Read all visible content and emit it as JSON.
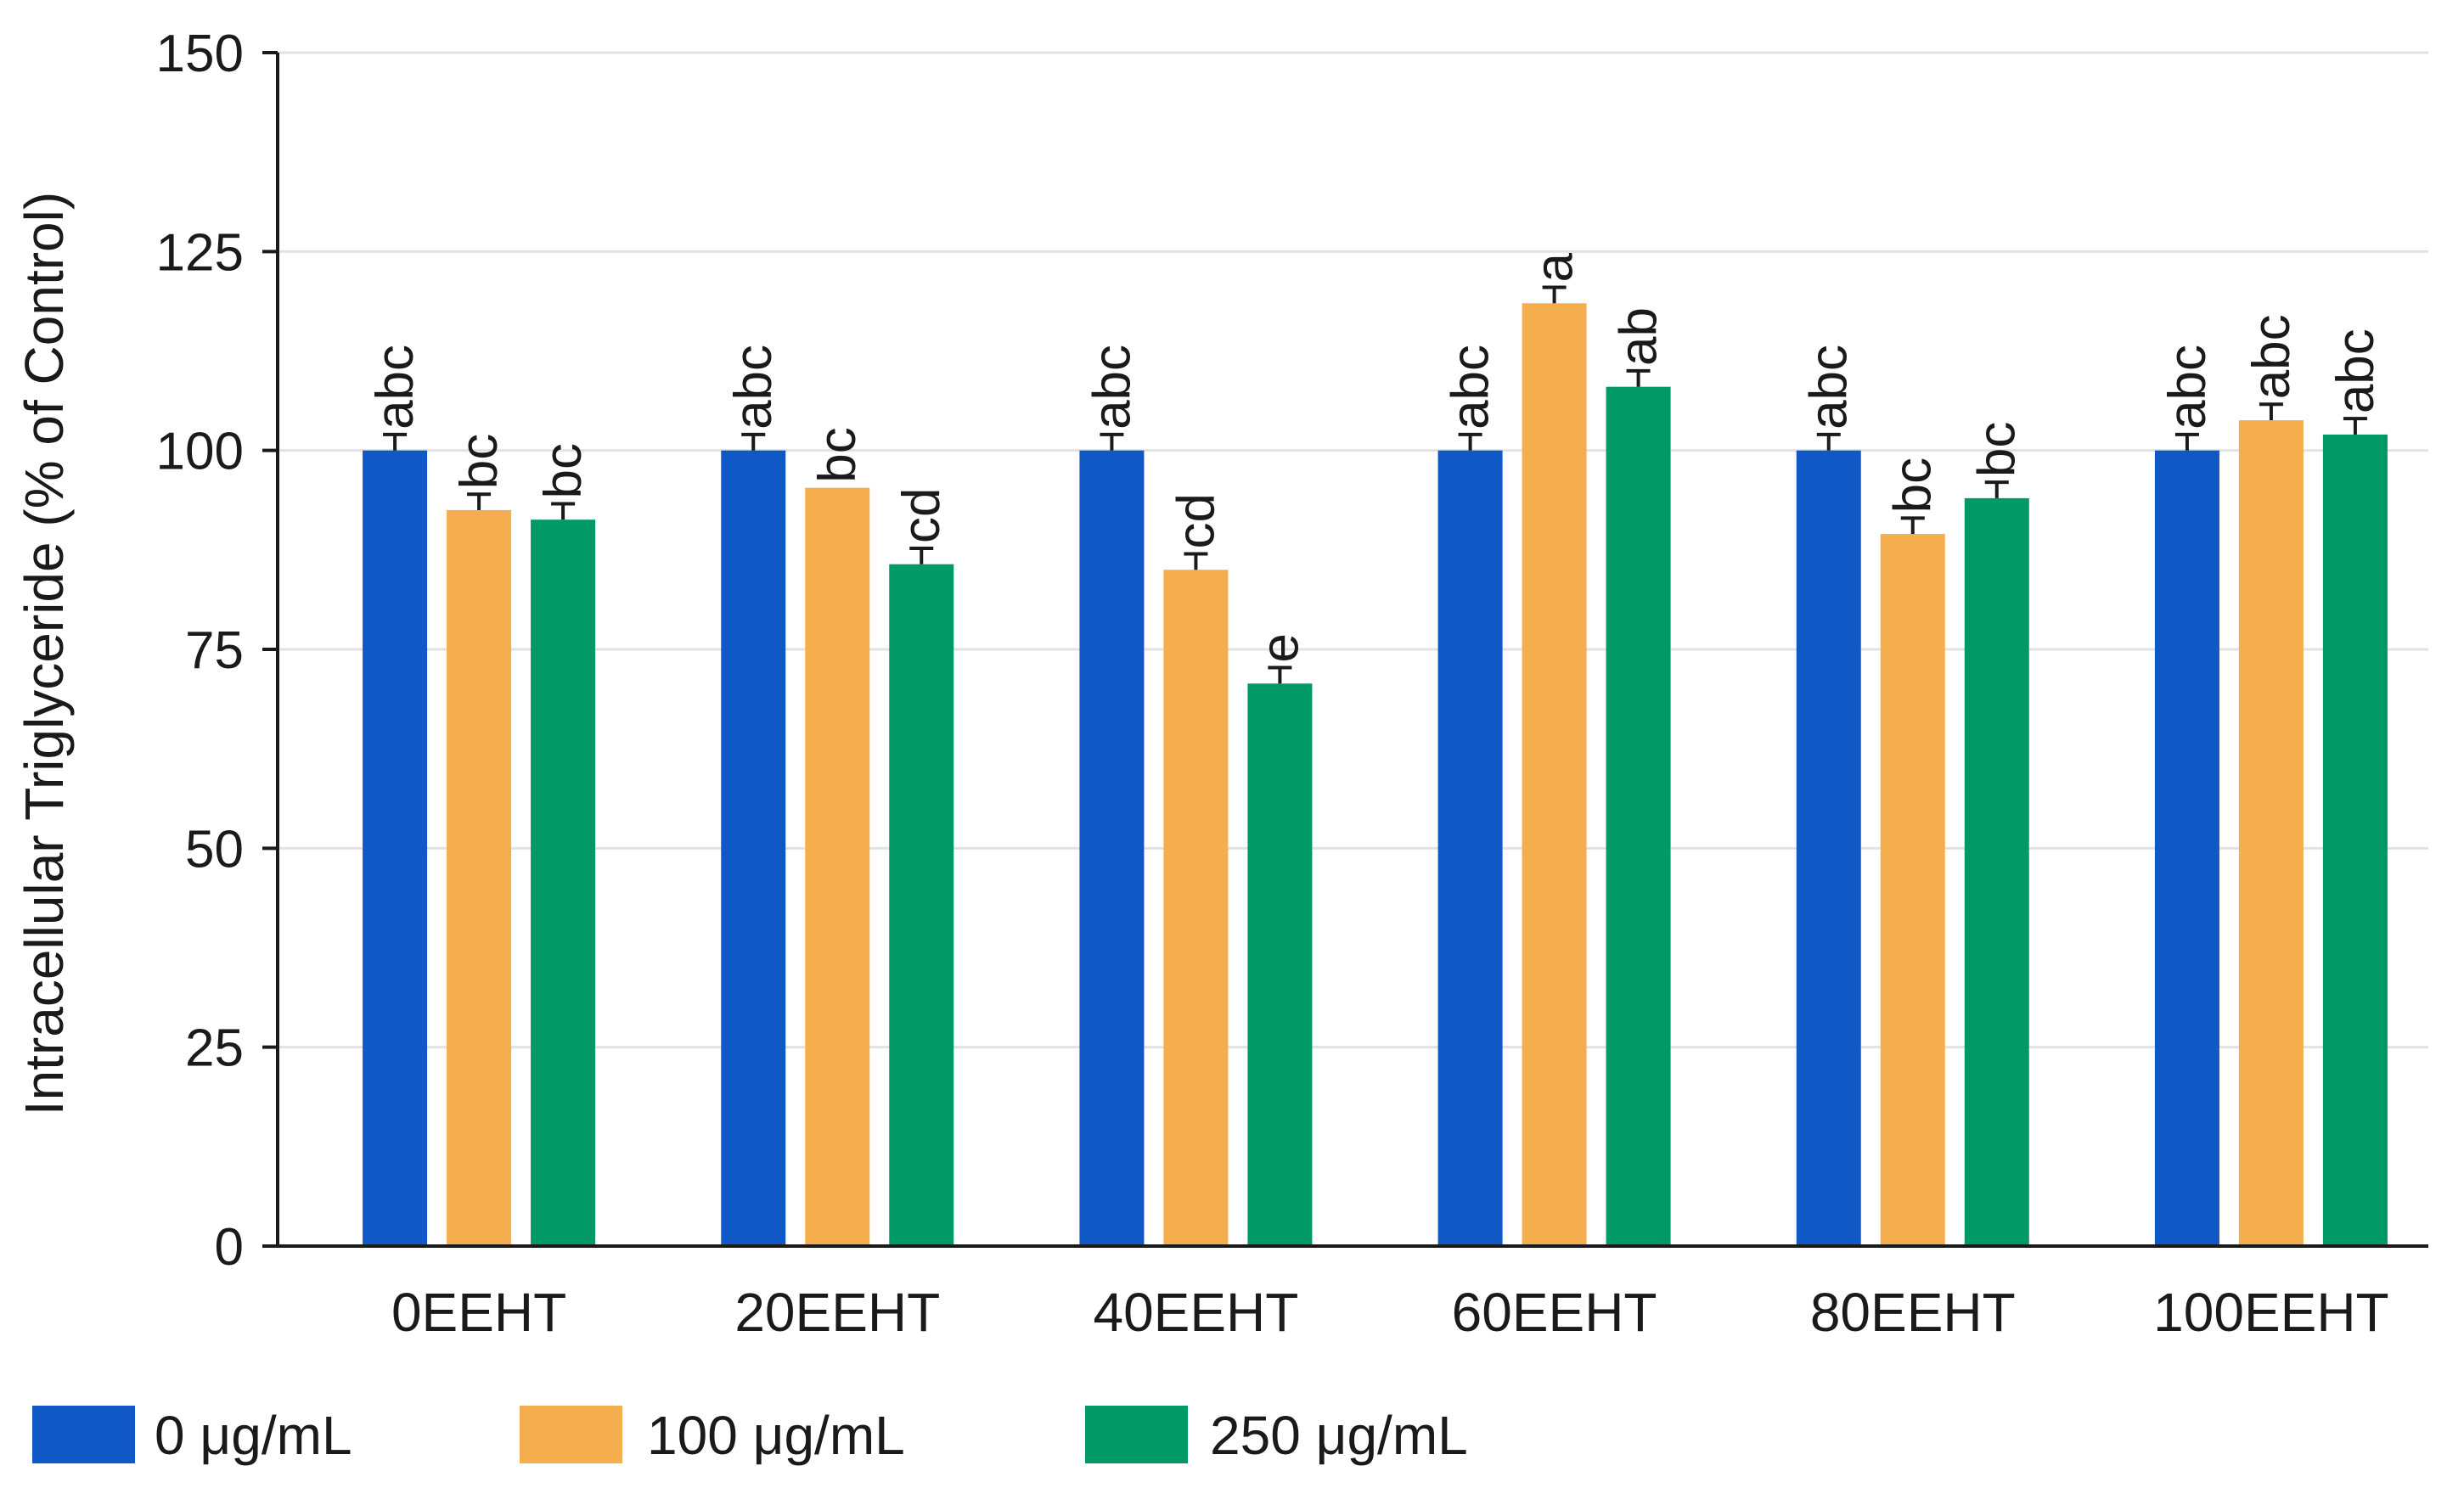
{
  "chart_data": {
    "type": "bar",
    "title": "",
    "xlabel": "",
    "ylabel": "Intracellular Triglyceride (% of Control)",
    "ylim": [
      0,
      150
    ],
    "yticks": [
      0,
      25,
      50,
      75,
      100,
      125,
      150
    ],
    "grid": true,
    "legend_position": "bottom-left",
    "categories": [
      "0EEHT",
      "20EEHT",
      "40EEHT",
      "60EEHT",
      "80EEHT",
      "100EEHT"
    ],
    "series": [
      {
        "name": "0 μg/mL",
        "color": "#1158C7",
        "values": [
          100,
          100,
          100,
          100,
          100,
          100
        ],
        "errors": [
          2,
          2,
          2,
          2,
          2,
          2
        ],
        "letters": [
          "abc",
          "abc",
          "abc",
          "abc",
          "abc",
          "abc"
        ]
      },
      {
        "name": "100 μg/mL",
        "color": "#F5AE4E",
        "values": [
          92.5,
          95.3,
          85,
          118.5,
          89.5,
          103.8
        ],
        "errors": [
          2,
          0,
          2,
          2,
          2,
          2
        ],
        "letters": [
          "bc",
          "bc",
          "cd",
          "a",
          "bc",
          "abc"
        ]
      },
      {
        "name": "250 μg/mL",
        "color": "#019966",
        "values": [
          91.3,
          85.7,
          70.7,
          108,
          94,
          102
        ],
        "errors": [
          2,
          2,
          2,
          2,
          2,
          2
        ],
        "letters": [
          "bc",
          "cd",
          "e",
          "ab",
          "bc",
          "abc"
        ]
      }
    ]
  }
}
